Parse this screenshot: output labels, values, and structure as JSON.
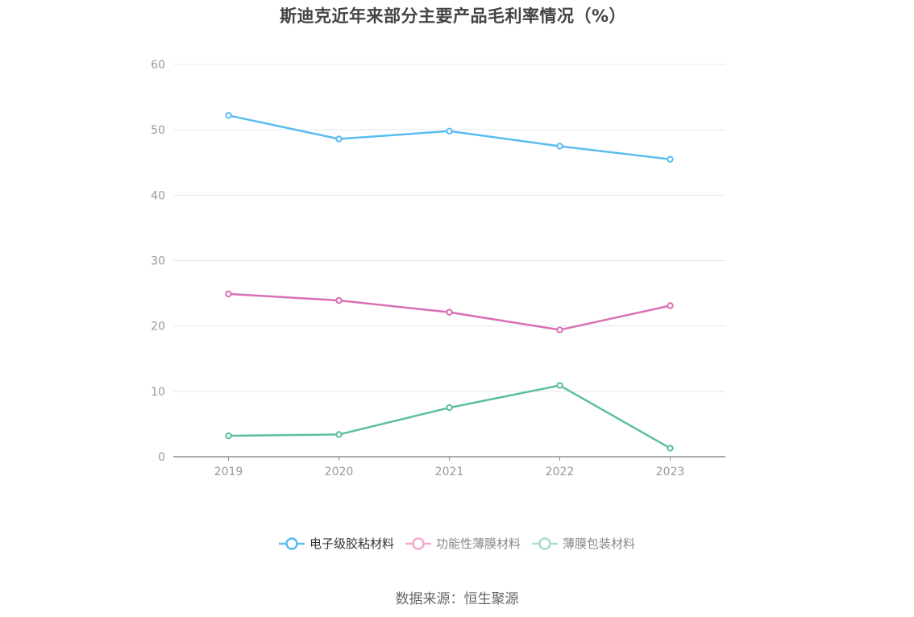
{
  "title": "斯迪克近年来部分主要产品毛利率情况（%）",
  "source": "数据来源：恒生聚源",
  "chart_data": {
    "type": "line",
    "title": "斯迪克近年来部分主要产品毛利率情况（%）",
    "categories": [
      "2019",
      "2020",
      "2021",
      "2022",
      "2023"
    ],
    "ylim": [
      0,
      60
    ],
    "yticks": [
      "0",
      "10",
      "20",
      "30",
      "40",
      "50",
      "60"
    ],
    "grid": true,
    "legend_position": "bottom",
    "series": [
      {
        "name": "电子级胶粘材料",
        "color": "#5bbcf0",
        "values": [
          52.2,
          48.6,
          49.8,
          47.5,
          45.5
        ]
      },
      {
        "name": "功能性薄膜材料",
        "color": "#d96fb4",
        "values": [
          24.9,
          23.9,
          22.1,
          19.4,
          23.1
        ]
      },
      {
        "name": "薄膜包装材料",
        "color": "#5cbfa2",
        "values": [
          3.2,
          3.4,
          7.5,
          10.9,
          1.3
        ]
      }
    ],
    "legend_colors": [
      "#5bbcf0",
      "#f4a8d0",
      "#a8dccd"
    ]
  }
}
